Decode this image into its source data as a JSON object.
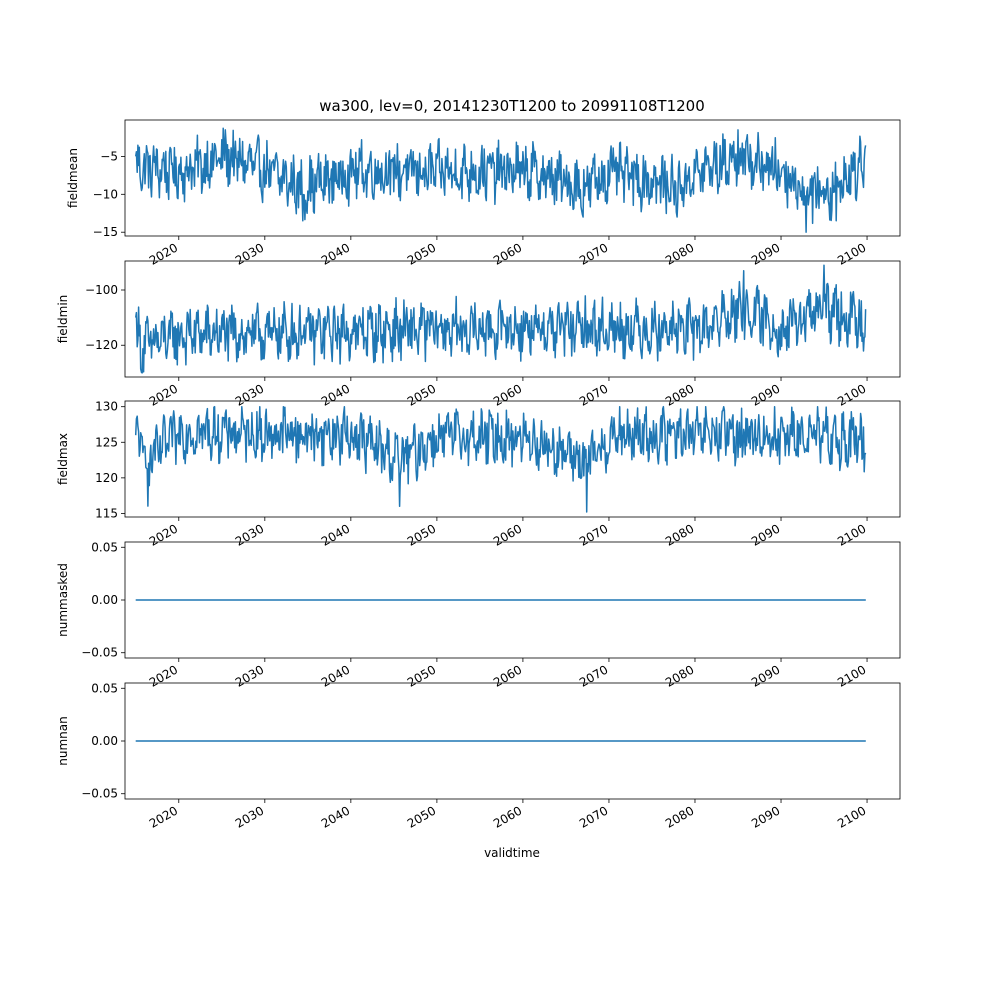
{
  "figure": {
    "title": "wa300, lev=0, 20141230T1200 to 20991108T1200",
    "xlabel": "validtime",
    "line_color": "#1f77b4",
    "x_tick_labels": [
      "2020",
      "2030",
      "2040",
      "2050",
      "2060",
      "2070",
      "2080",
      "2090",
      "2100"
    ]
  },
  "chart_data": [
    {
      "type": "line",
      "ylabel": "fieldmean",
      "xlim": [
        "2013-10-01",
        "2103-11-01"
      ],
      "ylim": [
        -15.5,
        -0.2
      ],
      "yticks": [
        -15,
        -10,
        -5
      ],
      "x_range": [
        "2014-12-30",
        "2099-11-08"
      ],
      "summary": {
        "min": -15.0,
        "max": -0.8,
        "mean": -7.0
      },
      "series": [
        {
          "x": [
            "2014-12-30",
            "2020-06-01",
            "2025-06-01",
            "2030-06-01",
            "2034-06-01",
            "2040-06-01",
            "2050-06-01",
            "2060-06-01",
            "2067-01-01",
            "2070-06-01",
            "2077-12-01",
            "2080-06-01",
            "2085-01-01",
            "2090-06-01",
            "2092-12-01",
            "2096-06-01",
            "2099-11-08"
          ],
          "y": [
            -5.0,
            -7.2,
            -1.5,
            -7.0,
            -13.5,
            -6.8,
            -7.1,
            -6.9,
            -13.0,
            -7.0,
            -13.0,
            -7.1,
            -1.5,
            -7.2,
            -15.0,
            -13.5,
            -3.5
          ]
        }
      ]
    },
    {
      "type": "line",
      "ylabel": "fieldmin",
      "xlim": [
        "2013-10-01",
        "2103-11-01"
      ],
      "ylim": [
        -131.5,
        -89.5
      ],
      "yticks": [
        -120,
        -100
      ],
      "x_range": [
        "2014-12-30",
        "2099-11-08"
      ],
      "summary": {
        "min": -130.0,
        "max": -91.0,
        "mean": -115.0
      },
      "series": [
        {
          "x": [
            "2014-12-30",
            "2015-09-01",
            "2020-06-01",
            "2030-06-01",
            "2040-06-01",
            "2050-06-01",
            "2060-06-01",
            "2070-06-01",
            "2080-06-01",
            "2085-09-01",
            "2090-06-01",
            "2095-01-01",
            "2099-11-08"
          ],
          "y": [
            -110.0,
            -130.0,
            -118.0,
            -117.0,
            -115.0,
            -113.0,
            -112.0,
            -112.0,
            -113.0,
            -93.0,
            -114.0,
            -91.0,
            -107.0
          ]
        }
      ]
    },
    {
      "type": "line",
      "ylabel": "fieldmax",
      "xlim": [
        "2013-10-01",
        "2103-11-01"
      ],
      "ylim": [
        114.5,
        130.8
      ],
      "yticks": [
        115,
        120,
        125,
        130
      ],
      "x_range": [
        "2014-12-30",
        "2099-11-08"
      ],
      "summary": {
        "min": 115.2,
        "max": 130.0,
        "mean": 126.0
      },
      "series": [
        {
          "x": [
            "2014-12-30",
            "2016-06-01",
            "2020-06-01",
            "2030-06-01",
            "2040-06-01",
            "2045-09-01",
            "2050-06-01",
            "2060-06-01",
            "2067-06-01",
            "2070-06-01",
            "2080-06-01",
            "2090-06-01",
            "2099-11-08"
          ],
          "y": [
            126.0,
            116.0,
            127.5,
            126.5,
            126.0,
            116.0,
            125.5,
            125.0,
            115.2,
            125.5,
            126.0,
            126.0,
            123.5
          ]
        }
      ]
    },
    {
      "type": "line",
      "ylabel": "nummasked",
      "xlim": [
        "2013-10-01",
        "2103-11-01"
      ],
      "ylim": [
        -0.055,
        0.055
      ],
      "yticks": [
        -0.05,
        0.0,
        0.05
      ],
      "x_range": [
        "2014-12-30",
        "2099-11-08"
      ],
      "series": [
        {
          "x": [
            "2014-12-30",
            "2099-11-08"
          ],
          "y": [
            0.0,
            0.0
          ]
        }
      ]
    },
    {
      "type": "line",
      "ylabel": "numnan",
      "xlim": [
        "2013-10-01",
        "2103-11-01"
      ],
      "ylim": [
        -0.055,
        0.055
      ],
      "yticks": [
        -0.05,
        0.0,
        0.05
      ],
      "x_range": [
        "2014-12-30",
        "2099-11-08"
      ],
      "series": [
        {
          "x": [
            "2014-12-30",
            "2099-11-08"
          ],
          "y": [
            0.0,
            0.0
          ]
        }
      ]
    }
  ]
}
